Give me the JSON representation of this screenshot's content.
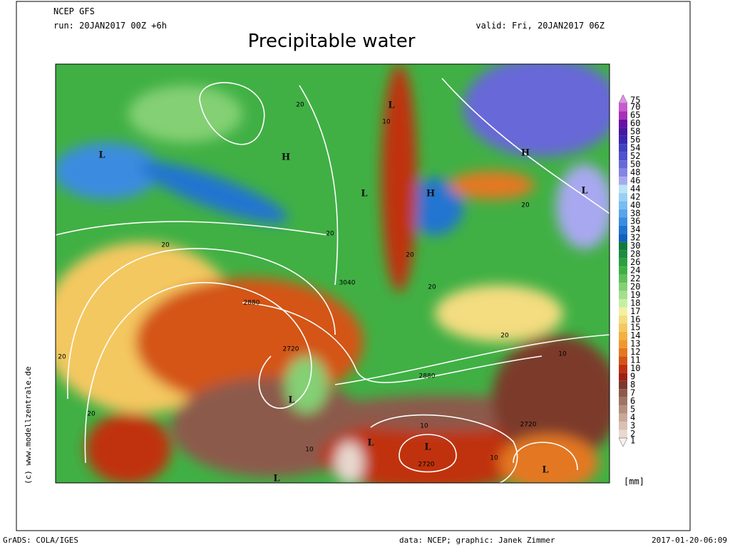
{
  "header": {
    "model": "NCEP GFS",
    "run": "run: 20JAN2017 00Z +6h",
    "valid": "valid: Fri, 20JAN2017 06Z",
    "title": "Precipitable water"
  },
  "colorbar": {
    "unit": "[mm]",
    "entries": [
      {
        "label": "75",
        "color": "#e090e8"
      },
      {
        "label": "70",
        "color": "#c858d0"
      },
      {
        "label": "65",
        "color": "#a830b8"
      },
      {
        "label": "60",
        "color": "#6a10a8"
      },
      {
        "label": "58",
        "color": "#4818a0"
      },
      {
        "label": "56",
        "color": "#3828b0"
      },
      {
        "label": "54",
        "color": "#4040c0"
      },
      {
        "label": "52",
        "color": "#5050d0"
      },
      {
        "label": "50",
        "color": "#6868d8"
      },
      {
        "label": "48",
        "color": "#8484e4"
      },
      {
        "label": "46",
        "color": "#a8a8f0"
      },
      {
        "label": "44",
        "color": "#b8e4f4"
      },
      {
        "label": "42",
        "color": "#98d0f4"
      },
      {
        "label": "40",
        "color": "#78bcf0"
      },
      {
        "label": "38",
        "color": "#58a4ec"
      },
      {
        "label": "36",
        "color": "#3a8ce0"
      },
      {
        "label": "34",
        "color": "#2074d0"
      },
      {
        "label": "32",
        "color": "#1060c0"
      },
      {
        "label": "30",
        "color": "#107a3c"
      },
      {
        "label": "28",
        "color": "#1c8c40"
      },
      {
        "label": "26",
        "color": "#2ca040"
      },
      {
        "label": "24",
        "color": "#40b044"
      },
      {
        "label": "22",
        "color": "#60c058"
      },
      {
        "label": "20",
        "color": "#84d074"
      },
      {
        "label": "19",
        "color": "#a4e08c"
      },
      {
        "label": "18",
        "color": "#c4f0a4"
      },
      {
        "label": "17",
        "color": "#f4f0a0"
      },
      {
        "label": "16",
        "color": "#f4dc80"
      },
      {
        "label": "15",
        "color": "#f4c860"
      },
      {
        "label": "14",
        "color": "#f4b040"
      },
      {
        "label": "13",
        "color": "#f09830"
      },
      {
        "label": "12",
        "color": "#e47820"
      },
      {
        "label": "11",
        "color": "#d45414"
      },
      {
        "label": "10",
        "color": "#c03010"
      },
      {
        "label": "9",
        "color": "#a02010"
      },
      {
        "label": "8",
        "color": "#7c3a2c"
      },
      {
        "label": "7",
        "color": "#8c5a4c"
      },
      {
        "label": "6",
        "color": "#a07464"
      },
      {
        "label": "5",
        "color": "#b48e7e"
      },
      {
        "label": "4",
        "color": "#c8a898"
      },
      {
        "label": "3",
        "color": "#d8c0b2"
      },
      {
        "label": "2",
        "color": "#e8d8d0"
      },
      {
        "label": "1",
        "color": "#f8f0ec"
      }
    ]
  },
  "map": {
    "labels": [
      "L",
      "H",
      "L",
      "L",
      "H",
      "H",
      "L",
      "L",
      "L",
      "L",
      "L",
      "L",
      "20",
      "20",
      "20",
      "20",
      "20",
      "20",
      "20",
      "20",
      "20",
      "10",
      "10",
      "10",
      "10",
      "10",
      "2880",
      "2880",
      "2720",
      "2720",
      "2720",
      "3040"
    ]
  },
  "side": "(c) www.modellzentrale.de",
  "footer": {
    "left": "GrADS: COLA/IGES",
    "middle": "data: NCEP; graphic: Janek Zimmer",
    "right": "2017-01-20-06:09"
  }
}
